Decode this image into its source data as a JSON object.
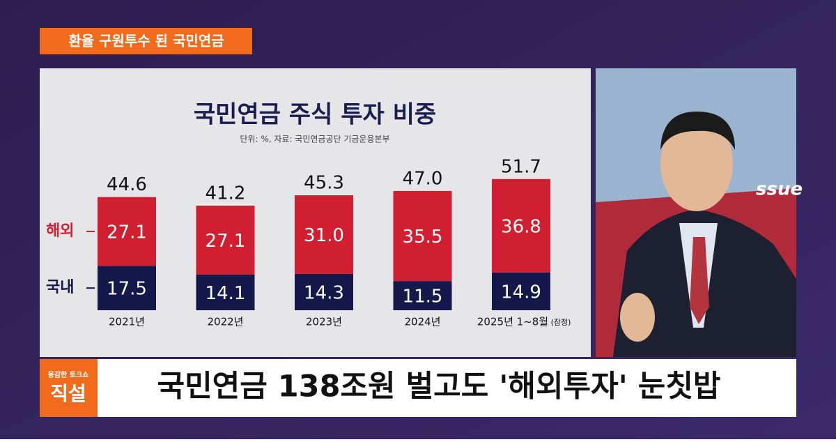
{
  "banner": "환율 구원투수 된 국민연금",
  "chart_data": {
    "type": "stacked-bar",
    "title": "국민연금 주식 투자 비중",
    "subtitle": "단위: %, 자료: 국민연금공단 기금운용본부",
    "categories": [
      "2021년",
      "2022년",
      "2023년",
      "2024년",
      "2025년 1~8월"
    ],
    "note": "(잠정)",
    "series": [
      {
        "name": "국내",
        "color": "#15184a",
        "values": [
          17.5,
          14.1,
          14.3,
          11.5,
          14.9
        ]
      },
      {
        "name": "해외",
        "color": "#cf1f30",
        "values": [
          27.1,
          27.1,
          31.0,
          35.5,
          36.8
        ],
        "value_labels": [
          "27.1",
          "27.1",
          "31.0",
          "35.5",
          "36.8"
        ]
      }
    ],
    "totals": [
      44.6,
      41.2,
      45.3,
      47.0,
      51.7
    ],
    "total_labels": [
      "44.6",
      "41.2",
      "45.3",
      "47.0",
      "51.7"
    ]
  },
  "backdrop_text": "ssue",
  "logo": {
    "small": "용감한 토크쇼",
    "big": "직설"
  },
  "headline": "국민연금 138조원 벌고도 '해외투자' 눈칫밥"
}
